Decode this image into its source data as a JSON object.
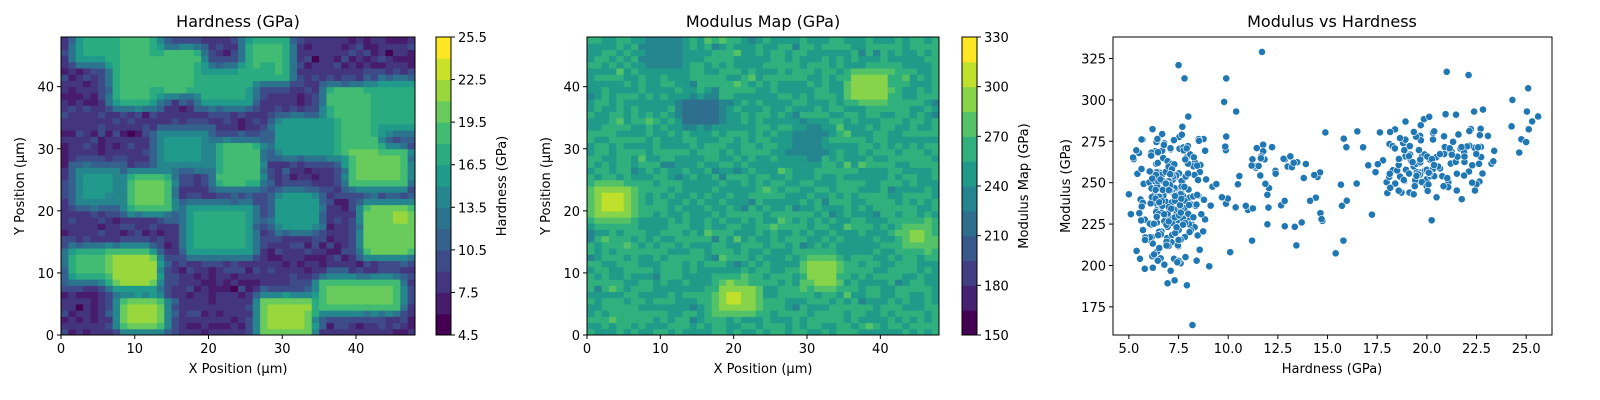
{
  "chart_data": [
    {
      "type": "heatmap",
      "title": "Hardness (GPa)",
      "xlabel": "X Position (µm)",
      "ylabel": "Y Position (µm)",
      "xlim": [
        0,
        48
      ],
      "ylim": [
        0,
        48
      ],
      "x_ticks": [
        0,
        10,
        20,
        30,
        40
      ],
      "y_ticks": [
        0,
        10,
        20,
        30,
        40
      ],
      "colorbar_label": "Hardness (GPa)",
      "colorbar_range": [
        4.5,
        25.5
      ],
      "colorbar_ticks": [
        "4.5",
        "7.5",
        "10.5",
        "13.5",
        "16.5",
        "19.5",
        "22.5",
        "25.5"
      ],
      "colormap": "viridis",
      "levels": 14,
      "hot_regions": [
        {
          "x": 3,
          "y": 45,
          "w": 4,
          "h": 3,
          "value": 17
        },
        {
          "x": 8,
          "y": 38,
          "w": 4,
          "h": 10,
          "value": 18
        },
        {
          "x": 14,
          "y": 40,
          "w": 4,
          "h": 5,
          "value": 19
        },
        {
          "x": 20,
          "y": 38,
          "w": 5,
          "h": 4,
          "value": 17
        },
        {
          "x": 26,
          "y": 42,
          "w": 4,
          "h": 5,
          "value": 18
        },
        {
          "x": 37,
          "y": 30,
          "w": 5,
          "h": 9,
          "value": 19
        },
        {
          "x": 40,
          "y": 25,
          "w": 6,
          "h": 4,
          "value": 20
        },
        {
          "x": 42,
          "y": 14,
          "w": 5,
          "h": 6,
          "value": 21
        },
        {
          "x": 36,
          "y": 5,
          "w": 9,
          "h": 3,
          "value": 20
        },
        {
          "x": 2,
          "y": 10,
          "w": 9,
          "h": 3,
          "value": 18
        },
        {
          "x": 8,
          "y": 9,
          "w": 4,
          "h": 3,
          "value": 22
        },
        {
          "x": 18,
          "y": 14,
          "w": 7,
          "h": 6,
          "value": 17
        },
        {
          "x": 22,
          "y": 25,
          "w": 4,
          "h": 5,
          "value": 19
        },
        {
          "x": 10,
          "y": 21,
          "w": 4,
          "h": 4,
          "value": 20
        },
        {
          "x": 3,
          "y": 22,
          "w": 4,
          "h": 4,
          "value": 15
        },
        {
          "x": 28,
          "y": 1,
          "w": 5,
          "h": 4,
          "value": 22
        },
        {
          "x": 9,
          "y": 2,
          "w": 4,
          "h": 3,
          "value": 21
        },
        {
          "x": 30,
          "y": 30,
          "w": 6,
          "h": 4,
          "value": 16
        },
        {
          "x": 14,
          "y": 28,
          "w": 5,
          "h": 4,
          "value": 15
        },
        {
          "x": 30,
          "y": 18,
          "w": 4,
          "h": 4,
          "value": 16
        },
        {
          "x": 44,
          "y": 34,
          "w": 4,
          "h": 6,
          "value": 17
        }
      ],
      "background_value": 8
    },
    {
      "type": "heatmap",
      "title": "Modulus Map (GPa)",
      "xlabel": "X Position (µm)",
      "ylabel": "Y Position (µm)",
      "xlim": [
        0,
        48
      ],
      "ylim": [
        0,
        48
      ],
      "x_ticks": [
        0,
        10,
        20,
        30,
        40
      ],
      "y_ticks": [
        0,
        10,
        20,
        30,
        40
      ],
      "colorbar_label": "Modulus Map (GPa)",
      "colorbar_range": [
        150,
        330
      ],
      "colorbar_ticks": [
        "150",
        "180",
        "210",
        "240",
        "270",
        "300",
        "330"
      ],
      "colormap": "viridis",
      "levels": 12,
      "hot_regions": [
        {
          "x": 2,
          "y": 20,
          "w": 3,
          "h": 3,
          "value": 300
        },
        {
          "x": 19,
          "y": 5,
          "w": 3,
          "h": 2,
          "value": 300
        },
        {
          "x": 37,
          "y": 39,
          "w": 3,
          "h": 2,
          "value": 295
        },
        {
          "x": 31,
          "y": 9,
          "w": 2,
          "h": 2,
          "value": 292
        },
        {
          "x": 14,
          "y": 35,
          "w": 3,
          "h": 2,
          "value": 215
        },
        {
          "x": 29,
          "y": 30,
          "w": 2,
          "h": 2,
          "value": 225
        },
        {
          "x": 44,
          "y": 15,
          "w": 2,
          "h": 2,
          "value": 285
        },
        {
          "x": 9,
          "y": 44,
          "w": 3,
          "h": 3,
          "value": 230
        }
      ],
      "background_value": 255
    },
    {
      "type": "scatter",
      "title": "Modulus vs Hardness",
      "xlabel": "Hardness (GPa)",
      "ylabel": "Modulus (GPa)",
      "xlim": [
        4.2,
        26.3
      ],
      "ylim": [
        158,
        338
      ],
      "x_ticks": [
        "5.0",
        "7.5",
        "10.0",
        "12.5",
        "15.0",
        "17.5",
        "20.0",
        "22.5",
        "25.0"
      ],
      "y_ticks": [
        "175",
        "200",
        "225",
        "250",
        "275",
        "300",
        "325"
      ],
      "marker_color": "#1f77b4",
      "clusters": [
        {
          "cx": 7.2,
          "cy": 243,
          "sx": 0.9,
          "sy": 20,
          "n": 260
        },
        {
          "cx": 20.5,
          "cy": 262,
          "sx": 2.0,
          "sy": 13,
          "n": 160
        },
        {
          "cx": 12.0,
          "cy": 255,
          "sx": 2.0,
          "sy": 18,
          "n": 60
        }
      ],
      "points": [
        {
          "x": 7.5,
          "y": 321
        },
        {
          "x": 11.7,
          "y": 329
        },
        {
          "x": 9.9,
          "y": 313
        },
        {
          "x": 7.8,
          "y": 313
        },
        {
          "x": 8.2,
          "y": 164
        },
        {
          "x": 25.1,
          "y": 307
        },
        {
          "x": 25.3,
          "y": 287
        },
        {
          "x": 25.6,
          "y": 290
        },
        {
          "x": 21.0,
          "y": 317
        },
        {
          "x": 22.1,
          "y": 315
        },
        {
          "x": 5.1,
          "y": 231
        },
        {
          "x": 5.8,
          "y": 198
        },
        {
          "x": 7.3,
          "y": 191
        },
        {
          "x": 15.8,
          "y": 215
        },
        {
          "x": 11.2,
          "y": 215
        },
        {
          "x": 10.1,
          "y": 208
        },
        {
          "x": 13.7,
          "y": 226
        },
        {
          "x": 14.7,
          "y": 228
        },
        {
          "x": 16.5,
          "y": 281
        },
        {
          "x": 10.4,
          "y": 293
        }
      ]
    }
  ]
}
